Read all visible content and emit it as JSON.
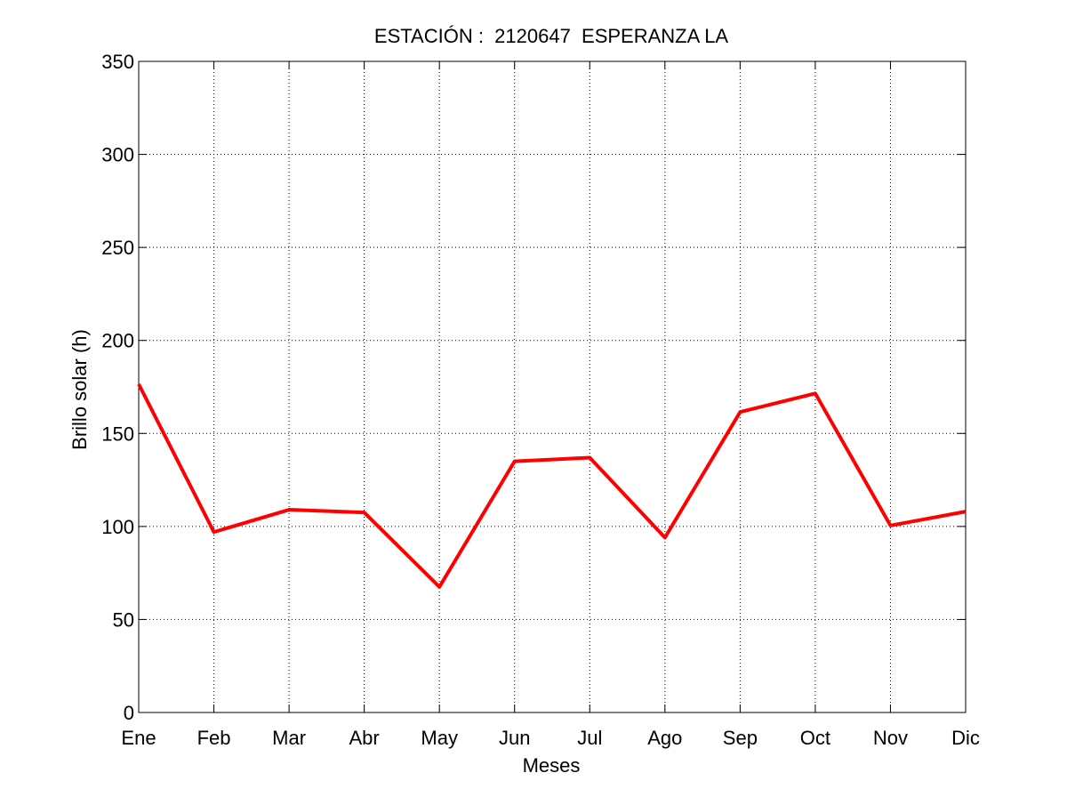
{
  "chart_data": {
    "type": "line",
    "title": "ESTACIÓN :  2120647  ESPERANZA LA",
    "xlabel": "Meses",
    "ylabel": "Brillo solar (h)",
    "categories": [
      "Ene",
      "Feb",
      "Mar",
      "Abr",
      "May",
      "Jun",
      "Jul",
      "Ago",
      "Sep",
      "Oct",
      "Nov",
      "Dic"
    ],
    "series": [
      {
        "values": [
          176.5,
          97,
          109,
          107.5,
          67.5,
          135,
          137,
          94,
          161.5,
          171.5,
          100.5,
          108
        ],
        "color": "#ff0000"
      }
    ],
    "ylim": [
      0,
      350
    ],
    "yticks": [
      0,
      50,
      100,
      150,
      200,
      250,
      300,
      350
    ],
    "grid": true,
    "grid_style": "dotted",
    "legend": "none"
  }
}
